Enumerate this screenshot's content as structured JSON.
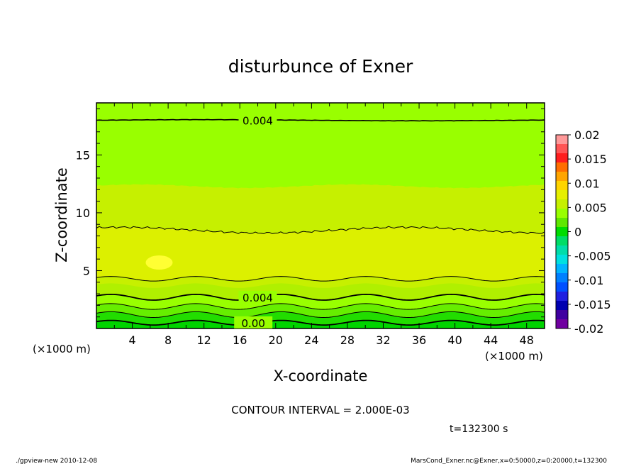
{
  "chart_data": {
    "type": "heatmap",
    "title": "disturbunce of Exner",
    "xlabel": "X-coordinate",
    "ylabel": "Z-coordinate",
    "x_unit": "(×1000 m)",
    "y_unit": "(×1000 m)",
    "xlim": [
      0,
      50
    ],
    "ylim": [
      0,
      19.5
    ],
    "x_ticks": [
      4,
      8,
      12,
      16,
      20,
      24,
      28,
      32,
      36,
      40,
      44,
      48
    ],
    "y_ticks": [
      5,
      10,
      15
    ],
    "contour_labels": [
      {
        "text": "0.004",
        "x": 18,
        "z": 18.0
      },
      {
        "text": "0.004",
        "x": 18,
        "z": 2.7
      },
      {
        "text": "0.00",
        "x": 17.5,
        "z": 0.5
      }
    ],
    "contour_interval_text": "CONTOUR INTERVAL = 2.000E-03",
    "time_text": "t=132300 s",
    "footer_left": "./gpview-new  2010-12-08",
    "footer_right": "MarsCond_Exner.nc@Exner,x=0:50000,z=0:20000,t=132300",
    "colorbar": {
      "labels": [
        "0.02",
        "0.015",
        "0.01",
        "0.005",
        "0",
        "-0.005",
        "-0.01",
        "-0.015",
        "-0.02"
      ],
      "range": [
        -0.02,
        0.02
      ],
      "colors": [
        "#ff9999",
        "#ff5555",
        "#ff1e1e",
        "#ff6e00",
        "#ffa500",
        "#ffd400",
        "#e6f000",
        "#c6f000",
        "#99ff00",
        "#5fe800",
        "#00dd00",
        "#00dd66",
        "#00ddaa",
        "#00e0e0",
        "#00b4ff",
        "#0080ff",
        "#0050ff",
        "#2020e0",
        "#0000b0",
        "#4000a0",
        "#7000a0"
      ]
    }
  }
}
